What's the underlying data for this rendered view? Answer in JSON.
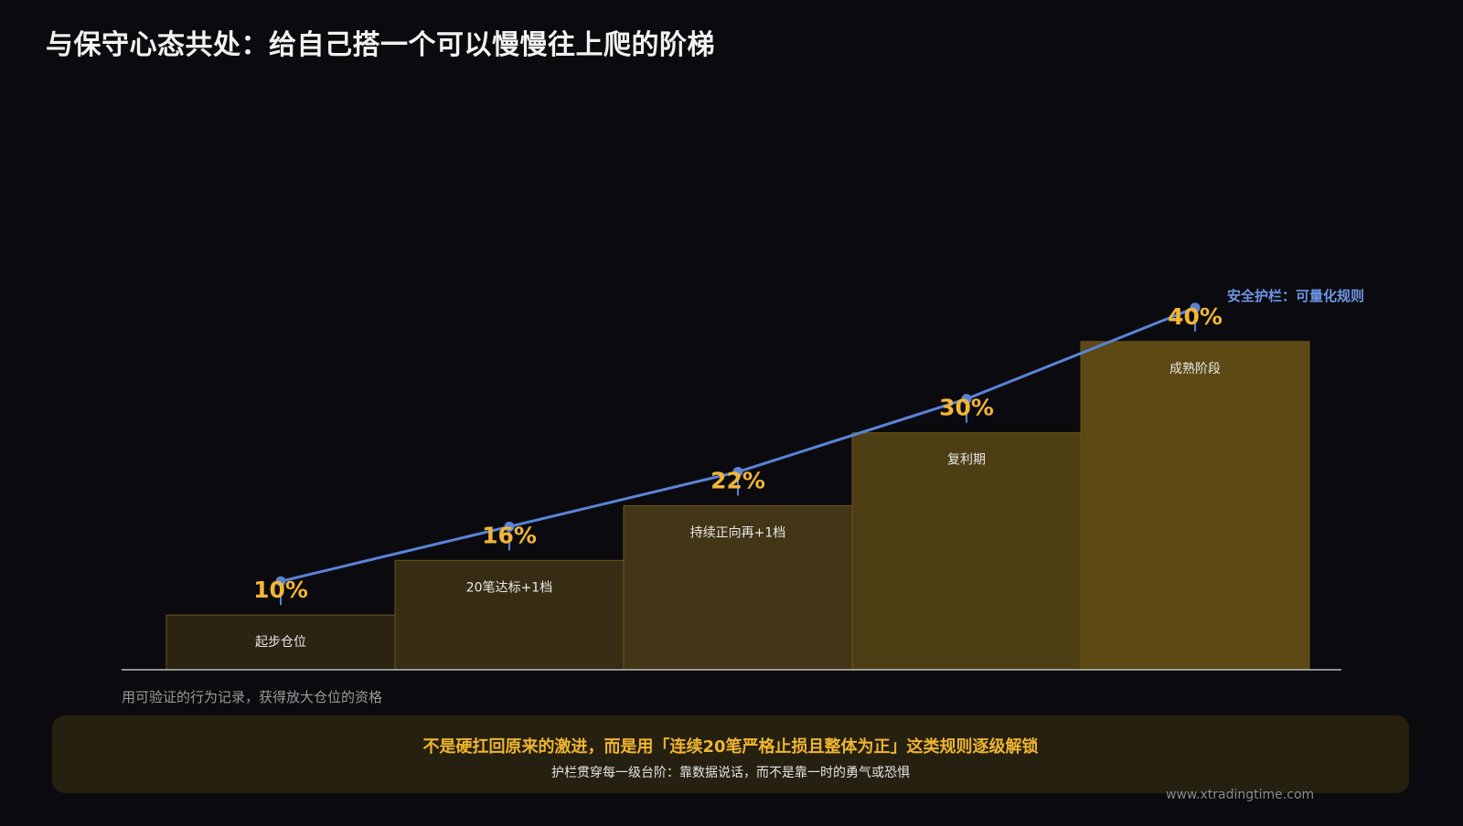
{
  "title": "与保守心态共处：给自己搭一个可以慢慢往上爬的阶梯",
  "chart_data": {
    "type": "bar",
    "categories": [
      "起步仓位",
      "20笔达标+1档",
      "持续正向再+1档",
      "复利期",
      "成熟阶段"
    ],
    "values": [
      10,
      16,
      22,
      30,
      40
    ],
    "value_labels": [
      "10%",
      "16%",
      "22%",
      "30%",
      "40%"
    ],
    "series_line": {
      "name": "安全护栏：可量化规则",
      "values": [
        10,
        16,
        22,
        30,
        40
      ]
    },
    "ylim": [
      0,
      50
    ],
    "grid": false,
    "bar_colors": [
      "#2b2412",
      "#372d14",
      "#433616",
      "#4e3e14",
      "#5c4914"
    ],
    "line_color": "#5b83d8",
    "label_color": "#f2b634"
  },
  "caption": "用可验证的行为记录，获得放大仓位的资格",
  "note": {
    "main": "不是硬扛回原来的激进，而是用「连续20笔严格止损且整体为正」这类规则逐级解锁",
    "sub": "护栏贯穿每一级台阶：靠数据说话，而不是靠一时的勇气或恐惧"
  },
  "watermark": "www.xtradingtime.com"
}
